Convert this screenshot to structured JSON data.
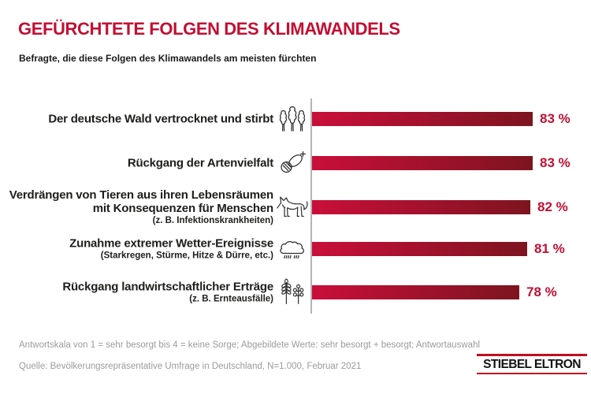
{
  "header": {
    "title": "GEFÜRCHTETE FOLGEN DES KLIMAWANDELS",
    "subtitle": "Befragte, die diese Folgen des Klimawandels am meisten fürchten"
  },
  "chart_data": {
    "type": "bar",
    "orientation": "horizontal",
    "title": "GEFÜRCHTETE FOLGEN DES KLIMAWANDELS",
    "subtitle": "Befragte, die diese Folgen des Klimawandels am meisten fürchten",
    "categories": [
      "Der deutsche Wald vertrocknet und stirbt",
      "Rückgang der Artenvielfalt",
      "Verdrängen von Tieren aus ihren Lebensräumen mit Konsequenzen für Menschen (z. B. Infektionskrankheiten)",
      "Zunahme extremer Wetter-Ereignisse (Starkregen, Stürme, Hitze & Dürre, etc.)",
      "Rückgang landwirtschaftlicher Erträge (z. B. Ernteausfälle)"
    ],
    "values": [
      83,
      83,
      82,
      81,
      78
    ],
    "value_labels": [
      "83 %",
      "83 %",
      "82 %",
      "81 %",
      "78 %"
    ],
    "unit": "%",
    "xlim": [
      0,
      100
    ],
    "grid": false,
    "legend": false,
    "icons": [
      "trees",
      "bee",
      "fox",
      "rain-cloud",
      "wheat"
    ]
  },
  "rows": [
    {
      "lines": [
        "Der deutsche Wald vertrocknet und stirbt"
      ],
      "value": 83,
      "value_label": "83 %"
    },
    {
      "lines": [
        "Rückgang der Artenvielfalt"
      ],
      "value": 83,
      "value_label": "83 %"
    },
    {
      "lines": [
        "Verdrängen von Tieren aus ihren Lebensräumen",
        "mit Konsequenzen für Menschen"
      ],
      "sub": "(z. B. Infektionskrankheiten)",
      "value": 82,
      "value_label": "82 %"
    },
    {
      "lines": [
        "Zunahme extremer Wetter-Ereignisse"
      ],
      "sub": "(Starkregen, Stürme, Hitze & Dürre, etc.)",
      "value": 81,
      "value_label": "81 %"
    },
    {
      "lines": [
        "Rückgang landwirtschaftlicher Erträge"
      ],
      "sub": "(z. B. Ernteausfälle)",
      "value": 78,
      "value_label": "78 %"
    }
  ],
  "footer": {
    "note": "Antwortskala von 1 = sehr besorgt bis 4 = keine Sorge; Abgebildete Werte: sehr besorgt + besorgt; Antwortauswahl",
    "source": "Quelle: Bevölkerungsrepräsentative Umfrage in Deutschland, N=1.000, Februar 2021"
  },
  "logo": {
    "text": "STIEBEL ELTRON"
  },
  "colors": {
    "accent_red": "#C20F33",
    "bar_gradient_start": "#C90F3A",
    "bar_gradient_end": "#7D141F",
    "axis_gray": "#B4B4B4",
    "footer_gray": "#9B9B9B",
    "logo_rule_red": "#C00F20",
    "text_black": "#1D1D1B"
  }
}
